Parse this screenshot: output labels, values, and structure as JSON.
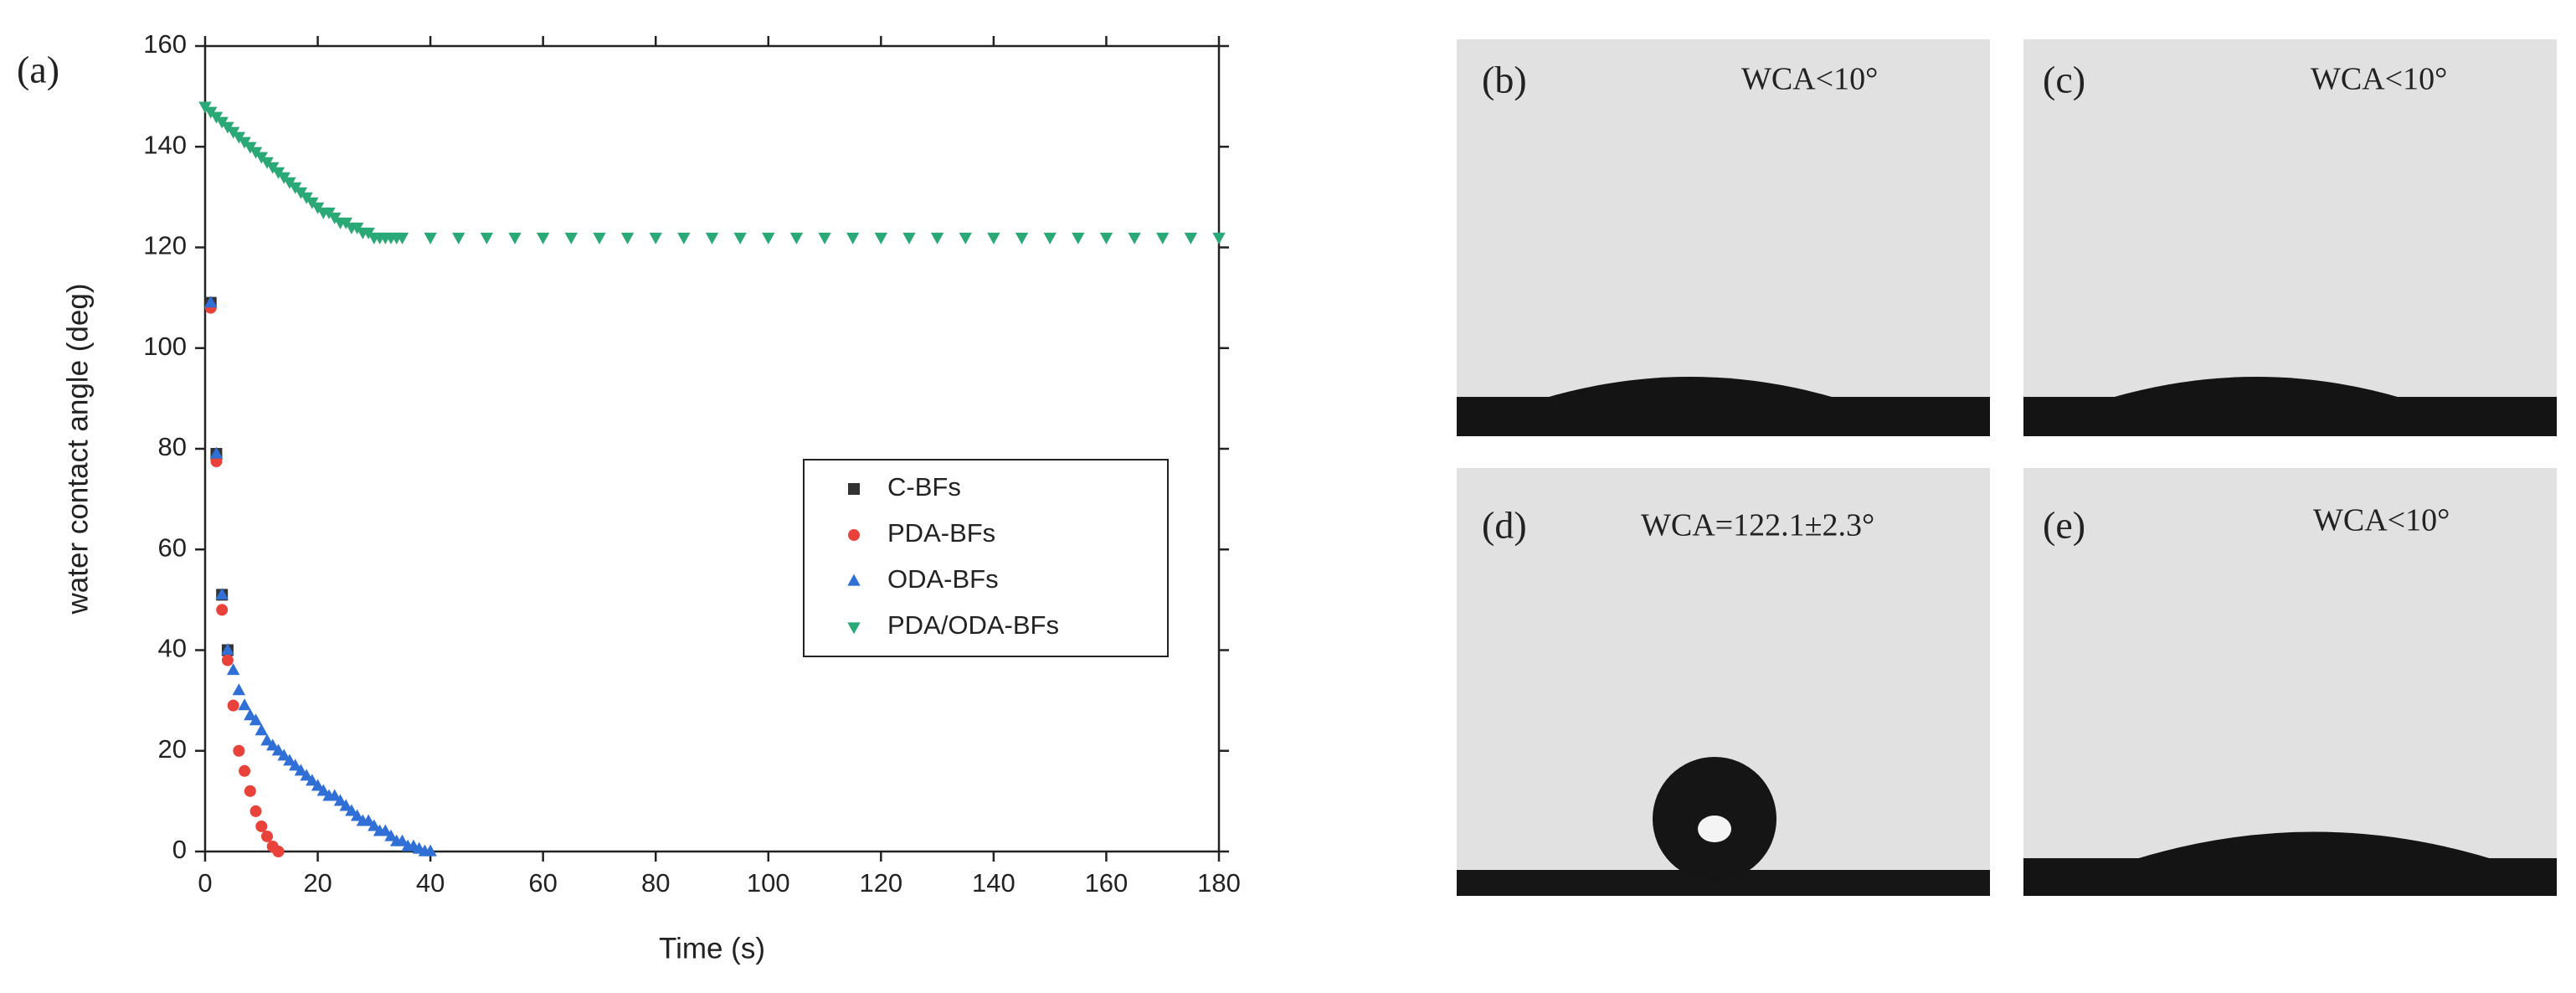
{
  "chart_data": {
    "type": "scatter",
    "label": "(a)",
    "x_label": "Time (s)",
    "y_label": "water contact angle (deg)",
    "xlim": [
      0,
      180
    ],
    "xticks": [
      0,
      20,
      40,
      60,
      80,
      100,
      120,
      140,
      160,
      180
    ],
    "ylim": [
      0,
      160
    ],
    "yticks": [
      0,
      20,
      40,
      60,
      80,
      100,
      120,
      140,
      160
    ],
    "series": [
      {
        "name": "C-BFs",
        "color": "#333333",
        "marker": "square",
        "x": [
          1,
          2,
          3,
          4
        ],
        "values": [
          109,
          79,
          51,
          40
        ]
      },
      {
        "name": "PDA-BFs",
        "color": "#e8423a",
        "marker": "circle",
        "x": [
          1,
          2,
          3,
          4,
          5,
          6,
          7,
          8,
          9,
          10,
          11,
          12,
          13
        ],
        "values": [
          108,
          77.5,
          48,
          38,
          29,
          20,
          16,
          12,
          8,
          5,
          3,
          1,
          0
        ]
      },
      {
        "name": "ODA-BFs",
        "color": "#2f6fd6",
        "marker": "triangle-up",
        "x": [
          1,
          2,
          3,
          4,
          5,
          6,
          7,
          8,
          9,
          10,
          11,
          12,
          13,
          14,
          15,
          16,
          17,
          18,
          19,
          20,
          21,
          22,
          23,
          24,
          25,
          26,
          27,
          28,
          29,
          30,
          31,
          32,
          33,
          34,
          35,
          36,
          37,
          38,
          39,
          40
        ],
        "values": [
          109,
          79,
          51,
          40,
          36,
          32,
          29,
          27,
          26,
          24,
          22,
          21,
          20,
          19,
          18,
          17,
          16,
          15,
          14,
          13,
          12,
          11,
          11,
          10,
          9,
          8,
          7,
          6,
          6,
          5,
          4,
          4,
          3,
          2,
          2,
          1,
          1,
          0.5,
          0,
          0
        ]
      },
      {
        "name": "PDA/ODA-BFs",
        "color": "#2aa876",
        "marker": "triangle-down",
        "x": [
          0,
          1,
          2,
          3,
          4,
          5,
          6,
          7,
          8,
          9,
          10,
          11,
          12,
          13,
          14,
          15,
          16,
          17,
          18,
          19,
          20,
          21,
          22,
          23,
          24,
          25,
          26,
          27,
          28,
          29,
          30,
          31,
          32,
          33,
          34,
          35,
          40,
          45,
          50,
          55,
          60,
          65,
          70,
          75,
          80,
          85,
          90,
          95,
          100,
          105,
          110,
          115,
          120,
          125,
          130,
          135,
          140,
          145,
          150,
          155,
          160,
          165,
          170,
          175,
          180
        ],
        "values": [
          148,
          147,
          146,
          145,
          144,
          143,
          142,
          141,
          140,
          139,
          138,
          137,
          136,
          135,
          134,
          133,
          132,
          131,
          130,
          129,
          128,
          127,
          127,
          126,
          125,
          125,
          124,
          124,
          123,
          123,
          122,
          122,
          122,
          122,
          122,
          122,
          122,
          122,
          122,
          122,
          122,
          122,
          122,
          122,
          122,
          122,
          122,
          122,
          122,
          122,
          122,
          122,
          122,
          122,
          122,
          122,
          122,
          122,
          122,
          122,
          122,
          122,
          122,
          122,
          122
        ]
      }
    ]
  },
  "panels": [
    {
      "label": "(b)",
      "annotation": "WCA<10°"
    },
    {
      "label": "(c)",
      "annotation": "WCA<10°"
    },
    {
      "label": "(d)",
      "annotation": "WCA=122.1±2.3°"
    },
    {
      "label": "(e)",
      "annotation": "WCA<10°"
    }
  ]
}
